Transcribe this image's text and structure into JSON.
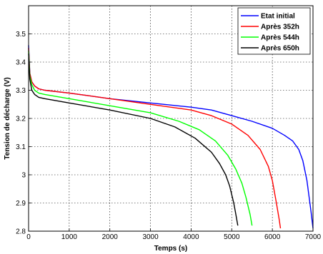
{
  "chart_data": {
    "type": "line",
    "xlabel": "Temps (s)",
    "ylabel": "Tension de décharge (V)",
    "xlim": [
      0,
      7000
    ],
    "ylim": [
      2.8,
      3.6
    ],
    "xticks": [
      0,
      1000,
      2000,
      3000,
      4000,
      5000,
      6000,
      7000
    ],
    "yticks": [
      2.8,
      2.9,
      3,
      3.1,
      3.2,
      3.3,
      3.4,
      3.5
    ],
    "grid": true,
    "legend_position": "top-right",
    "series": [
      {
        "name": "Etat initial",
        "color": "#0000ff",
        "x": [
          0,
          30,
          80,
          150,
          250,
          400,
          1000,
          2000,
          3000,
          4000,
          4500,
          5000,
          5500,
          6000,
          6300,
          6500,
          6650,
          6750,
          6850,
          6950,
          7000
        ],
        "y": [
          3.46,
          3.36,
          3.33,
          3.315,
          3.305,
          3.3,
          3.29,
          3.27,
          3.255,
          3.24,
          3.23,
          3.21,
          3.19,
          3.165,
          3.14,
          3.12,
          3.09,
          3.05,
          2.98,
          2.87,
          2.81
        ]
      },
      {
        "name": "Après 352h",
        "color": "#ff0000",
        "x": [
          0,
          30,
          80,
          150,
          250,
          400,
          1000,
          2000,
          3000,
          4000,
          4500,
          5000,
          5400,
          5700,
          5900,
          6000,
          6100,
          6170,
          6200
        ],
        "y": [
          3.45,
          3.36,
          3.33,
          3.315,
          3.305,
          3.3,
          3.29,
          3.27,
          3.25,
          3.23,
          3.21,
          3.18,
          3.14,
          3.09,
          3.03,
          2.98,
          2.9,
          2.84,
          2.81
        ]
      },
      {
        "name": "Après 544h",
        "color": "#00ff00",
        "x": [
          0,
          30,
          80,
          150,
          250,
          400,
          1000,
          2000,
          3000,
          3700,
          4200,
          4600,
          4900,
          5100,
          5250,
          5350,
          5450,
          5500
        ],
        "y": [
          3.44,
          3.35,
          3.32,
          3.3,
          3.29,
          3.285,
          3.27,
          3.245,
          3.22,
          3.19,
          3.16,
          3.12,
          3.07,
          3.02,
          2.97,
          2.92,
          2.86,
          2.82
        ]
      },
      {
        "name": "Après 650h",
        "color": "#000000",
        "x": [
          0,
          30,
          80,
          150,
          250,
          400,
          1000,
          2000,
          3000,
          3600,
          4100,
          4500,
          4700,
          4850,
          4950,
          5050,
          5100,
          5150
        ],
        "y": [
          3.43,
          3.34,
          3.3,
          3.285,
          3.275,
          3.27,
          3.255,
          3.23,
          3.2,
          3.17,
          3.13,
          3.08,
          3.04,
          3.0,
          2.96,
          2.9,
          2.86,
          2.82
        ]
      }
    ]
  }
}
